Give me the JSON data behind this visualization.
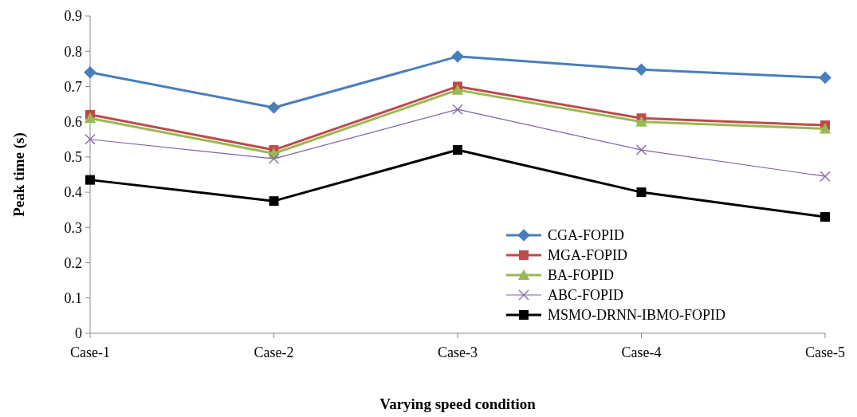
{
  "chart_data": {
    "type": "line",
    "xlabel": "Varying speed condition",
    "ylabel": "Peak time (s)",
    "categories": [
      "Case-1",
      "Case-2",
      "Case-3",
      "Case-4",
      "Case-5"
    ],
    "ylim": [
      0,
      0.9
    ],
    "yticks": [
      {
        "value": 0,
        "label": "0"
      },
      {
        "value": 0.1,
        "label": "0.1"
      },
      {
        "value": 0.2,
        "label": "0.2"
      },
      {
        "value": 0.3,
        "label": "0.3"
      },
      {
        "value": 0.4,
        "label": "0.4"
      },
      {
        "value": 0.5,
        "label": "0.5"
      },
      {
        "value": 0.6,
        "label": "0.6"
      },
      {
        "value": 0.7,
        "label": "0.7"
      },
      {
        "value": 0.8,
        "label": "0.8"
      },
      {
        "value": 0.9,
        "label": "0.9"
      }
    ],
    "grid": false,
    "legend": "bottom right",
    "series": [
      {
        "name": "CGA-FOPID",
        "color": "#4a7ebb",
        "marker": "diamond",
        "values": [
          0.74,
          0.64,
          0.785,
          0.748,
          0.725
        ]
      },
      {
        "name": "MGA-FOPID",
        "color": "#be4b48",
        "marker": "square",
        "values": [
          0.62,
          0.52,
          0.7,
          0.61,
          0.59
        ]
      },
      {
        "name": "BA-FOPID",
        "color": "#98b954",
        "marker": "triangle",
        "values": [
          0.61,
          0.51,
          0.69,
          0.6,
          0.58
        ]
      },
      {
        "name": "ABC-FOPID",
        "color": "#8064a2",
        "marker": "cross",
        "values": [
          0.55,
          0.495,
          0.635,
          0.52,
          0.445
        ]
      },
      {
        "name": "MSMO-DRNN-IBMO-FOPID",
        "color": "#000000",
        "marker": "square",
        "values": [
          0.435,
          0.375,
          0.52,
          0.4,
          0.33
        ]
      }
    ]
  }
}
